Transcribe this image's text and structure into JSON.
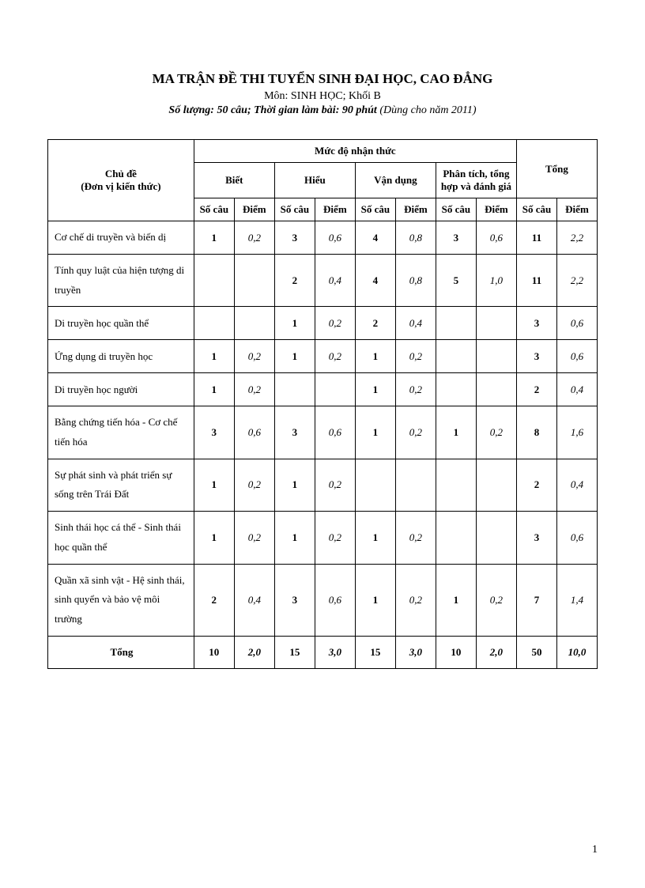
{
  "header": {
    "title": "MA TRẬN ĐỀ THI TUYỂN SINH ĐẠI HỌC, CAO ĐẲNG",
    "subtitle": "Môn: SINH HỌC; Khối B",
    "meta_bold": "Số lượng: 50 câu; Thời gian làm bài: 90 phút",
    "meta_normal": " (Dùng cho năm 2011)"
  },
  "columns": {
    "topic": "Chủ đề",
    "topic_sub": "(Đơn vị kiến thức)",
    "cognition": "Mức độ nhận thức",
    "levels": [
      "Biết",
      "Hiểu",
      "Vận dụng",
      "Phân tích, tổng hợp và đánh giá"
    ],
    "total": "Tổng",
    "count": "Số câu",
    "score": "Điểm"
  },
  "rows": [
    {
      "topic": "Cơ chế di truyền và biến dị",
      "cells": [
        "1",
        "0,2",
        "3",
        "0,6",
        "4",
        "0,8",
        "3",
        "0,6",
        "11",
        "2,2"
      ],
      "tall": false
    },
    {
      "topic": "Tính quy luật của hiện tượng di truyền",
      "cells": [
        "",
        "",
        "2",
        "0,4",
        "4",
        "0,8",
        "5",
        "1,0",
        "11",
        "2,2"
      ],
      "tall": false
    },
    {
      "topic": "Di truyền học quần thể",
      "cells": [
        "",
        "",
        "1",
        "0,2",
        "2",
        "0,4",
        "",
        "",
        "3",
        "0,6"
      ],
      "tall": false
    },
    {
      "topic": "Ứng dụng di truyền học",
      "cells": [
        "1",
        "0,2",
        "1",
        "0,2",
        "1",
        "0,2",
        "",
        "",
        "3",
        "0,6"
      ],
      "tall": false
    },
    {
      "topic": "Di truyền học người",
      "cells": [
        "1",
        "0,2",
        "",
        "",
        "1",
        "0,2",
        "",
        "",
        "2",
        "0,4"
      ],
      "tall": false
    },
    {
      "topic": "Bằng chứng tiến hóa - Cơ chế tiến hóa",
      "cells": [
        "3",
        "0,6",
        "3",
        "0,6",
        "1",
        "0,2",
        "1",
        "0,2",
        "8",
        "1,6"
      ],
      "tall": false
    },
    {
      "topic": "Sự phát sinh và phát triển sự sống trên Trái Đất",
      "cells": [
        "1",
        "0,2",
        "1",
        "0,2",
        "",
        "",
        "",
        "",
        "2",
        "0,4"
      ],
      "tall": true
    },
    {
      "topic": "Sinh thái học cá thể - Sinh thái học quần thể",
      "cells": [
        "1",
        "0,2",
        "1",
        "0,2",
        "1",
        "0,2",
        "",
        "",
        "3",
        "0,6"
      ],
      "tall": true
    },
    {
      "topic": "Quần xã sinh vật - Hệ sinh thái, sinh quyển và bảo vệ môi trường",
      "cells": [
        "2",
        "0,4",
        "3",
        "0,6",
        "1",
        "0,2",
        "1",
        "0,2",
        "7",
        "1,4"
      ],
      "tall": true
    }
  ],
  "total_row": {
    "label": "Tổng",
    "cells": [
      "10",
      "2,0",
      "15",
      "3,0",
      "15",
      "3,0",
      "10",
      "2,0",
      "50",
      "10,0"
    ]
  },
  "page_number": "1"
}
